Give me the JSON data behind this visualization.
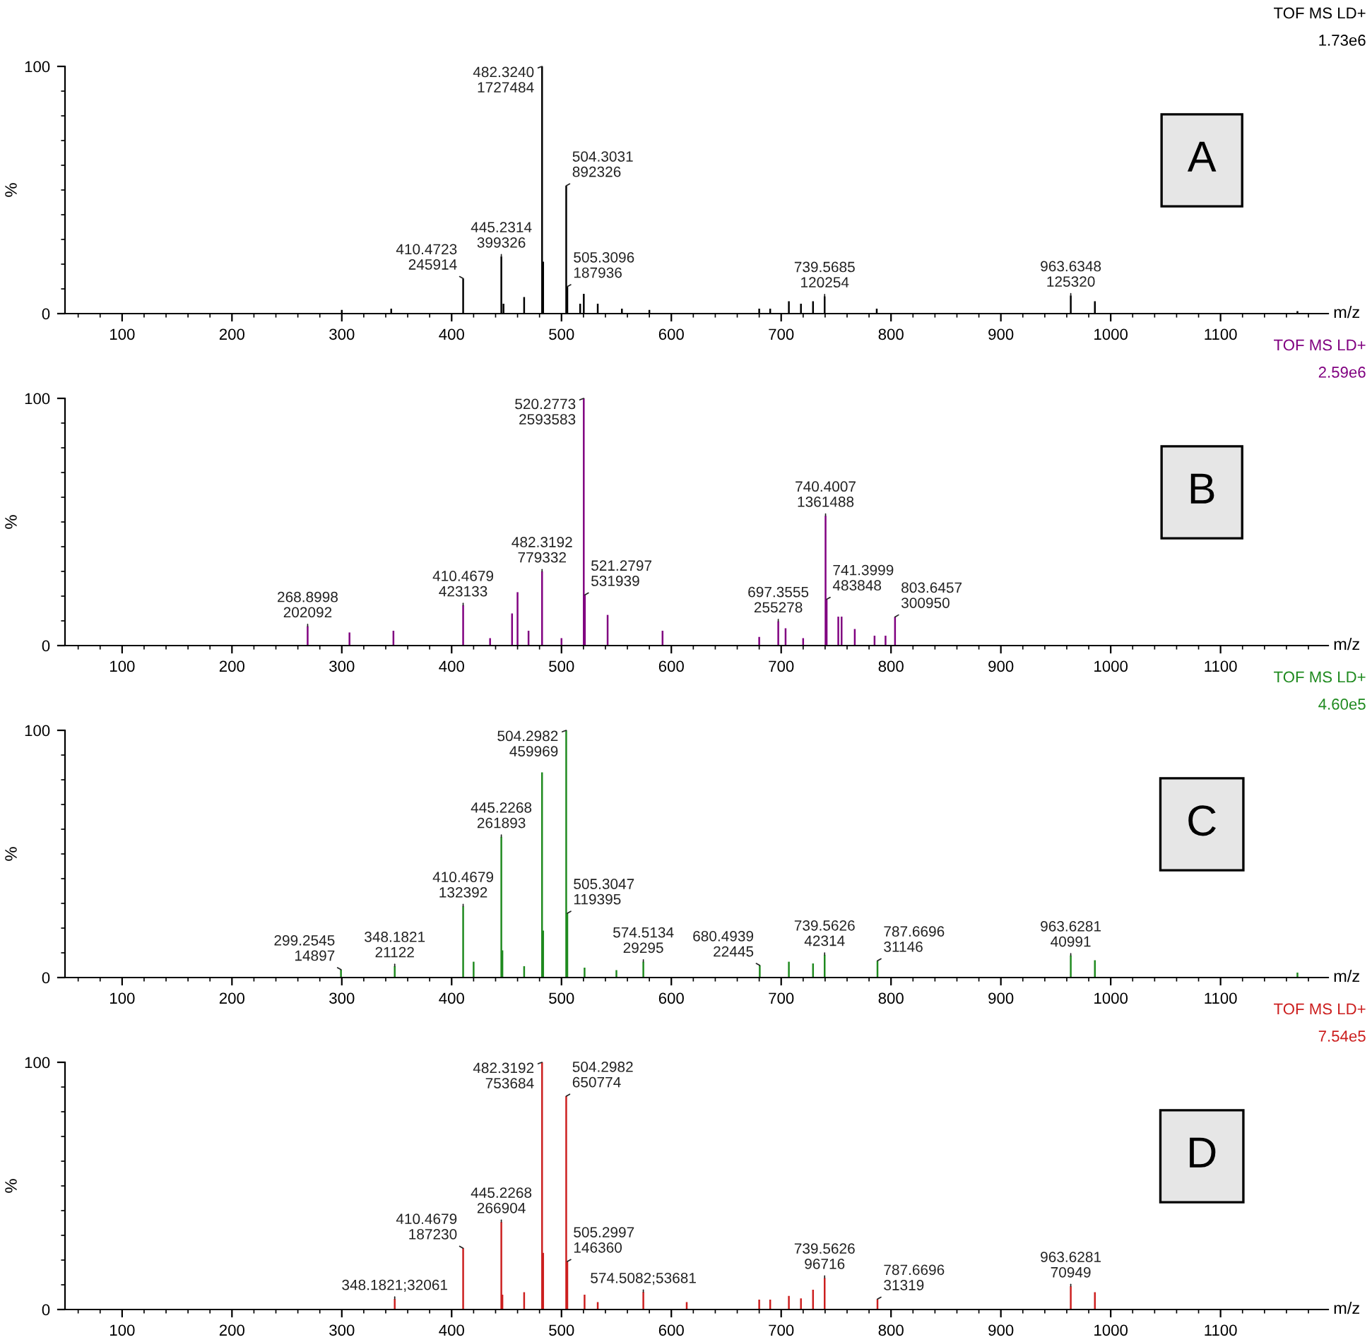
{
  "chart_data": [
    {
      "type": "bar",
      "color": "#000000",
      "xlabel": "m/z",
      "ylabel": "%",
      "xlim": [
        48,
        1198
      ],
      "xticks": [
        100,
        200,
        300,
        400,
        500,
        600,
        700,
        800,
        900,
        1000,
        1100
      ],
      "ylim": [
        0,
        100
      ],
      "yticks": [
        0,
        100
      ],
      "x": [
        300,
        345,
        410.4723,
        445.2314,
        447.2,
        466,
        482.324,
        483.3,
        504.3031,
        505.3096,
        517,
        520.3,
        533,
        555,
        580,
        680,
        690,
        707,
        718,
        729,
        739.5685,
        787,
        963.6348,
        985.6,
        1170
      ],
      "values": [
        1.5,
        2,
        14.2,
        23.1,
        4,
        6.7,
        100,
        21,
        51.7,
        10.9,
        4,
        8,
        4,
        2,
        1.5,
        2,
        2,
        5,
        4,
        5,
        7.0,
        2,
        7.3,
        5,
        1
      ],
      "annotations": [
        {
          "text": "482.3240\n1727484",
          "x": 482.324,
          "y": 100
        },
        {
          "text": "504.3031\n892326",
          "x": 504.3031,
          "y": 51.7
        },
        {
          "text": "445.2314\n399326",
          "x": 445.2314,
          "y": 23.1
        },
        {
          "text": "410.4723\n245914",
          "x": 410.4723,
          "y": 14.2
        },
        {
          "text": "505.3096\n187936",
          "x": 505.3096,
          "y": 10.9
        },
        {
          "text": "963.6348\n125320",
          "x": 963.6348,
          "y": 7.3
        },
        {
          "text": "739.5685\n120254",
          "x": 739.5685,
          "y": 7.0
        },
        "TOF MS LD+",
        "1.73e6",
        "A"
      ]
    },
    {
      "type": "bar",
      "color": "#800080",
      "xlabel": "m/z",
      "ylabel": "%",
      "xlim": [
        48,
        1198
      ],
      "xticks": [
        100,
        200,
        300,
        400,
        500,
        600,
        700,
        800,
        900,
        1000,
        1100
      ],
      "ylim": [
        0,
        100
      ],
      "yticks": [
        0,
        100
      ],
      "x": [
        268.8998,
        307,
        347,
        410.4679,
        435,
        455,
        460,
        470,
        482.3192,
        500,
        520.2773,
        521.2797,
        542,
        592,
        680,
        697.3555,
        704,
        720,
        740.4007,
        741.3999,
        752,
        755,
        767,
        785,
        795,
        803.6457
      ],
      "values": [
        7.8,
        5.3,
        6,
        16.3,
        3,
        13,
        21.6,
        6,
        30.0,
        3,
        100,
        20.5,
        12.4,
        6,
        3.5,
        9.8,
        7,
        3,
        52.5,
        18.7,
        11.7,
        11.7,
        6.7,
        4,
        4,
        11.6
      ],
      "annotations": [
        {
          "text": "520.2773\n2593583",
          "x": 520.2773,
          "y": 100
        },
        {
          "text": "740.4007\n1361488",
          "x": 740.4007,
          "y": 52.5
        },
        {
          "text": "482.3192\n779332",
          "x": 482.3192,
          "y": 30.0
        },
        {
          "text": "521.2797\n531939",
          "x": 521.2797,
          "y": 20.5
        },
        {
          "text": "741.3999\n483848",
          "x": 741.3999,
          "y": 18.7
        },
        {
          "text": "410.4679\n423133",
          "x": 410.4679,
          "y": 16.3
        },
        {
          "text": "803.6457\n300950",
          "x": 803.6457,
          "y": 11.6
        },
        {
          "text": "697.3555\n255278",
          "x": 697.3555,
          "y": 9.8
        },
        {
          "text": "268.8998\n202092",
          "x": 268.8998,
          "y": 7.8
        },
        "TOF MS LD+",
        "2.59e6",
        "B"
      ]
    },
    {
      "type": "bar",
      "color": "#1f8a1f",
      "xlabel": "m/z",
      "ylabel": "%",
      "xlim": [
        48,
        1198
      ],
      "xticks": [
        100,
        200,
        300,
        400,
        500,
        600,
        700,
        800,
        900,
        1000,
        1100
      ],
      "ylim": [
        0,
        100
      ],
      "yticks": [
        0,
        100
      ],
      "x": [
        299.2545,
        348.1821,
        410.4679,
        420,
        445.2268,
        446.2,
        466,
        482.3,
        483.3,
        504.2982,
        505.3047,
        521,
        550,
        574.5134,
        680.4939,
        707,
        729,
        739.5626,
        787.6696,
        963.6281,
        985.6,
        1170
      ],
      "values": [
        3.2,
        4.6,
        28.8,
        6.4,
        56.9,
        11,
        4.6,
        83,
        19,
        100,
        26.0,
        4,
        3,
        6.4,
        4.9,
        6.4,
        5.7,
        9.2,
        6.8,
        8.9,
        7,
        2
      ],
      "annotations": [
        {
          "text": "504.2982\n459969",
          "x": 504.2982,
          "y": 100
        },
        {
          "text": "445.2268\n261893",
          "x": 445.2268,
          "y": 56.9
        },
        {
          "text": "410.4679\n132392",
          "x": 410.4679,
          "y": 28.8
        },
        {
          "text": "505.3047\n119395",
          "x": 505.3047,
          "y": 26.0
        },
        {
          "text": "739.5626\n42314",
          "x": 739.5626,
          "y": 9.2
        },
        {
          "text": "963.6281\n40991",
          "x": 963.6281,
          "y": 8.9
        },
        {
          "text": "787.6696\n31146",
          "x": 787.6696,
          "y": 6.8
        },
        {
          "text": "574.5134\n29295",
          "x": 574.5134,
          "y": 6.4
        },
        {
          "text": "680.4939\n22445",
          "x": 680.4939,
          "y": 4.9
        },
        {
          "text": "348.1821\n21122",
          "x": 348.1821,
          "y": 4.6
        },
        {
          "text": "299.2545\n14897",
          "x": 299.2545,
          "y": 3.2
        },
        "TOF MS LD+",
        "4.60e5",
        "C"
      ]
    },
    {
      "type": "bar",
      "color": "#cc1f1f",
      "xlabel": "m/z",
      "ylabel": "%",
      "xlim": [
        48,
        1198
      ],
      "xticks": [
        100,
        200,
        300,
        400,
        500,
        600,
        700,
        800,
        900,
        1000,
        1100
      ],
      "ylim": [
        0,
        100
      ],
      "yticks": [
        0,
        100
      ],
      "x": [
        348.1821,
        410.4679,
        445.2268,
        446.2,
        466,
        482.3192,
        483.3,
        504.2982,
        505.2997,
        521,
        533,
        574.5082,
        614,
        680,
        690,
        707,
        718,
        729,
        739.5626,
        787.6696,
        963.6281,
        985.6
      ],
      "values": [
        4.3,
        24.8,
        35.4,
        6,
        7,
        100,
        22.9,
        86.3,
        19.4,
        6,
        3,
        7.1,
        3,
        4,
        4,
        5.5,
        4.5,
        8,
        12.8,
        4.2,
        9.4,
        7
      ],
      "annotations": [
        {
          "text": "482.3192\n753684",
          "x": 482.3192,
          "y": 100
        },
        {
          "text": "504.2982\n650774",
          "x": 504.2982,
          "y": 86.3
        },
        {
          "text": "445.2268\n266904",
          "x": 445.2268,
          "y": 35.4
        },
        {
          "text": "410.4679\n187230",
          "x": 410.4679,
          "y": 24.8
        },
        {
          "text": "505.2997\n146360",
          "x": 505.2997,
          "y": 19.4
        },
        {
          "text": "739.5626\n96716",
          "x": 739.5626,
          "y": 12.8
        },
        {
          "text": "963.6281\n70949",
          "x": 963.6281,
          "y": 9.4
        },
        {
          "text": "574.5082;53681",
          "x": 574.5082,
          "y": 7.1
        },
        {
          "text": "348.1821;32061",
          "x": 348.1821,
          "y": 4.3
        },
        {
          "text": "787.6696\n31319",
          "x": 787.6696,
          "y": 4.2
        },
        "TOF MS LD+",
        "7.54e5",
        "D"
      ]
    }
  ]
}
